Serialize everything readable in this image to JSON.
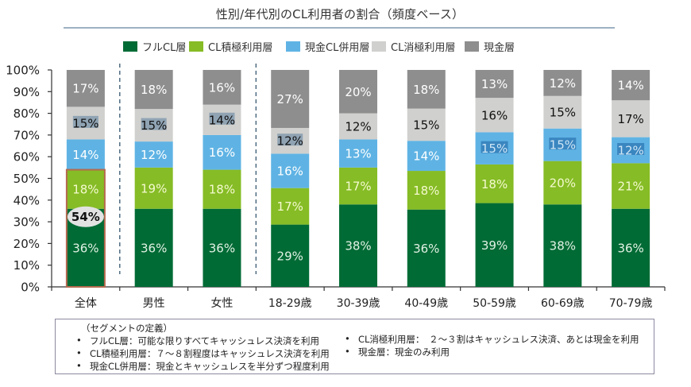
{
  "title": "性別/年代別のCL利用者の割合（頻度ベース）",
  "legend": [
    {
      "label": "フルCL層",
      "color": "#006b35"
    },
    {
      "label": "CL積極利用層",
      "color": "#86bc25"
    },
    {
      "label": "現金CL併用層",
      "color": "#5fb3e4"
    },
    {
      "label": "CL消極利用層",
      "color": "#d0d0ce"
    },
    {
      "label": "現金層",
      "color": "#8e8e8e"
    }
  ],
  "chart_data": {
    "type": "bar",
    "stacked": true,
    "title": "性別/年代別のCL利用者の割合（頻度ベース）",
    "xlabel": "",
    "ylabel": "",
    "ylim": [
      0,
      100
    ],
    "yticks": [
      "0%",
      "10%",
      "20%",
      "30%",
      "40%",
      "50%",
      "60%",
      "70%",
      "80%",
      "90%",
      "100%"
    ],
    "legend_position": "top",
    "categories": [
      "全体",
      "男性",
      "女性",
      "18-29歳",
      "30-39歳",
      "40-49歳",
      "50-59歳",
      "60-69歳",
      "70-79歳"
    ],
    "group_separators_after": [
      "全体",
      "女性"
    ],
    "series": [
      {
        "name": "フルCL層",
        "color": "#006b35",
        "label_color": "#e2f1e4",
        "values": [
          36,
          36,
          36,
          29,
          38,
          36,
          39,
          38,
          36
        ]
      },
      {
        "name": "CL積極利用層",
        "color": "#86bc25",
        "label_color": "#f4fad0",
        "values": [
          18,
          19,
          18,
          17,
          17,
          18,
          18,
          20,
          21
        ]
      },
      {
        "name": "現金CL併用層",
        "color": "#5fb3e4",
        "label_color": "#ffffff",
        "values": [
          14,
          12,
          16,
          16,
          13,
          14,
          15,
          15,
          12
        ]
      },
      {
        "name": "CL消極利用層",
        "color": "#d0d0ce",
        "label_color": "#111111",
        "values": [
          15,
          15,
          14,
          12,
          12,
          15,
          16,
          15,
          17
        ]
      },
      {
        "name": "現金層",
        "color": "#8e8e8e",
        "label_color": "#ffffff",
        "values": [
          17,
          18,
          16,
          27,
          20,
          18,
          13,
          12,
          14
        ]
      }
    ],
    "annotation": {
      "category": "全体",
      "label": "54%",
      "covers_series": [
        "フルCL層",
        "CL積極利用層"
      ],
      "outline_color": "#b5694f"
    }
  },
  "definitions": {
    "heading": "（セグメントの定義）",
    "left": [
      "フルCL層：可能な限りすべてキャッシュレス決済を利用",
      "CL積極利用層：７～８割程度はキャッシュレス決済を利用",
      "現金CL併用層：現金とキャッシュレスを半分ずつ程度利用"
    ],
    "right": [
      "CL消極利用層：　２～３割はキャッシュレス決済、あとは現金を利用",
      "現金層：現金のみ利用"
    ],
    "bullet": "•"
  }
}
